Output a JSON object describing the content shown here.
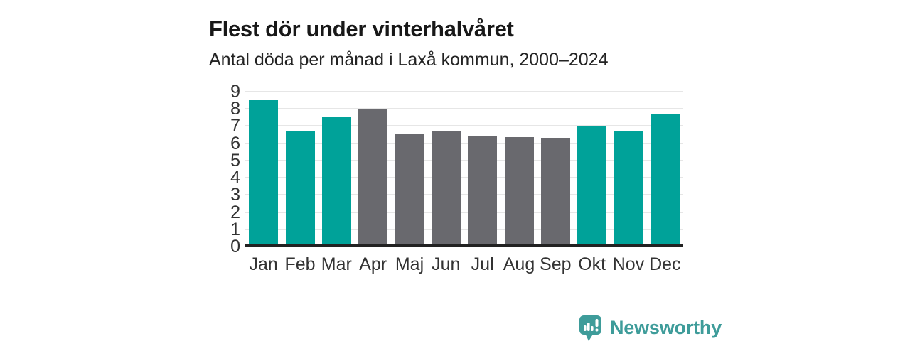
{
  "header": {
    "title": "Flest dör under vinterhalvåret",
    "subtitle": "Antal döda per månad i Laxå kommun, 2000–2024"
  },
  "chart_data": {
    "type": "bar",
    "title": "Flest dör under vinterhalvåret",
    "subtitle": "Antal döda per månad i Laxå kommun, 2000–2024",
    "categories": [
      "Jan",
      "Feb",
      "Mar",
      "Apr",
      "Maj",
      "Jun",
      "Jul",
      "Aug",
      "Sep",
      "Okt",
      "Nov",
      "Dec"
    ],
    "values": [
      8.4,
      6.55,
      7.4,
      7.9,
      6.4,
      6.55,
      6.3,
      6.25,
      6.2,
      6.85,
      6.55,
      7.6
    ],
    "bar_groups": [
      "winter",
      "winter",
      "winter",
      "summer",
      "summer",
      "summer",
      "summer",
      "summer",
      "summer",
      "winter",
      "winter",
      "winter"
    ],
    "group_colors": {
      "winter": "#00a299",
      "summer": "#69696e"
    },
    "xlabel": "",
    "ylabel": "",
    "ylim": [
      0,
      9
    ],
    "yticks": [
      0,
      1,
      2,
      3,
      4,
      5,
      6,
      7,
      8,
      9
    ],
    "grid": true,
    "gridline_color": "#e6e6e6",
    "axis_line_color": "#222222",
    "legend": false
  },
  "footer": {
    "brand": "Newsworthy",
    "brand_color": "#3e9c9a",
    "logo_icon": "newsworthy-speech-bubble-chart-icon"
  }
}
